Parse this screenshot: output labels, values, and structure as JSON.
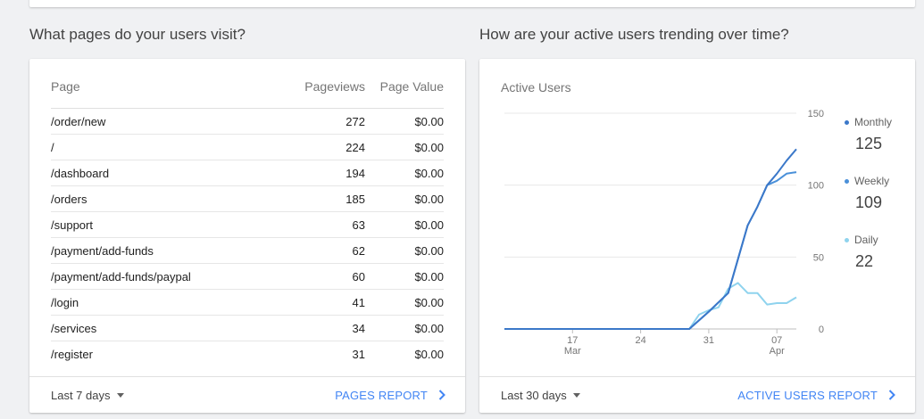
{
  "pages_section": {
    "title": "What pages do your users visit?",
    "table": {
      "headers": {
        "page": "Page",
        "pageviews": "Pageviews",
        "value": "Page Value"
      },
      "rows": [
        {
          "page": "/order/new",
          "pageviews": "272",
          "value": "$0.00"
        },
        {
          "page": "/",
          "pageviews": "224",
          "value": "$0.00"
        },
        {
          "page": "/dashboard",
          "pageviews": "194",
          "value": "$0.00"
        },
        {
          "page": "/orders",
          "pageviews": "185",
          "value": "$0.00"
        },
        {
          "page": "/support",
          "pageviews": "63",
          "value": "$0.00"
        },
        {
          "page": "/payment/add-funds",
          "pageviews": "62",
          "value": "$0.00"
        },
        {
          "page": "/payment/add-funds/paypal",
          "pageviews": "60",
          "value": "$0.00"
        },
        {
          "page": "/login",
          "pageviews": "41",
          "value": "$0.00"
        },
        {
          "page": "/services",
          "pageviews": "34",
          "value": "$0.00"
        },
        {
          "page": "/register",
          "pageviews": "31",
          "value": "$0.00"
        }
      ]
    },
    "footer": {
      "range": "Last 7 days",
      "report_link": "PAGES REPORT"
    }
  },
  "users_section": {
    "title": "How are your active users trending over time?",
    "chart_title": "Active Users",
    "legend": [
      {
        "label": "Monthly",
        "value": "125",
        "color": "#3b78c9"
      },
      {
        "label": "Weekly",
        "value": "109",
        "color": "#4a90d9"
      },
      {
        "label": "Daily",
        "value": "22",
        "color": "#8fd3ee"
      }
    ],
    "footer": {
      "range": "Last 30 days",
      "report_link": "ACTIVE USERS REPORT"
    }
  },
  "chart_data": {
    "type": "line",
    "title": "Active Users",
    "x_tick_labels": [
      {
        "day": 17,
        "label": "17",
        "sublabel": "Mar"
      },
      {
        "day": 24,
        "label": "24",
        "sublabel": ""
      },
      {
        "day": 31,
        "label": "31",
        "sublabel": ""
      },
      {
        "day": 38,
        "label": "07",
        "sublabel": "Apr"
      }
    ],
    "x_range": [
      10,
      40
    ],
    "y_ticks": [
      0,
      50,
      100,
      150
    ],
    "ylim": [
      0,
      150
    ],
    "grid": true,
    "legend_position": "right",
    "series": [
      {
        "name": "Monthly",
        "color": "#3b78c9",
        "x": [
          10,
          29,
          31,
          33,
          35,
          36,
          37,
          38,
          39,
          40
        ],
        "y": [
          0,
          0,
          12,
          25,
          72,
          85,
          100,
          108,
          117,
          125
        ]
      },
      {
        "name": "Weekly",
        "color": "#4a90d9",
        "x": [
          10,
          29,
          31,
          33,
          35,
          36,
          37,
          38,
          39,
          40
        ],
        "y": [
          0,
          0,
          12,
          25,
          72,
          85,
          100,
          103,
          108,
          109
        ]
      },
      {
        "name": "Daily",
        "color": "#8fd3ee",
        "x": [
          10,
          29,
          30,
          31,
          32,
          33,
          34,
          35,
          36,
          37,
          38,
          39,
          40
        ],
        "y": [
          0,
          0,
          10,
          13,
          15,
          28,
          32,
          25,
          25,
          17,
          18,
          18,
          22
        ]
      }
    ]
  }
}
